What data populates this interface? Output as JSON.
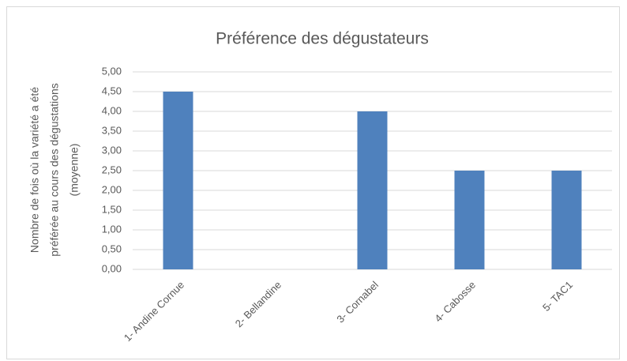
{
  "chart_data": {
    "type": "bar",
    "title": "Préférence des dégustateurs",
    "ylabel": [
      "Nombre de fois où la variété a été",
      "préférée au cours des dégustations",
      "(moyenne)"
    ],
    "categories": [
      "1- Andine Cornue",
      "2- Bellandine",
      "3- Cornabel",
      "4- Cabosse",
      "5- TAC1"
    ],
    "values": [
      4.5,
      0,
      4,
      2.5,
      2.5
    ],
    "color": "#4f81bd",
    "ylim": [
      0,
      5
    ],
    "yticks": [
      {
        "value": 0,
        "label": "0,00"
      },
      {
        "value": 0.5,
        "label": "0,50"
      },
      {
        "value": 1,
        "label": "1,00"
      },
      {
        "value": 1.5,
        "label": "1,50"
      },
      {
        "value": 2,
        "label": "2,00"
      },
      {
        "value": 2.5,
        "label": "2,50"
      },
      {
        "value": 3,
        "label": "3,00"
      },
      {
        "value": 3.5,
        "label": "3,50"
      },
      {
        "value": 4,
        "label": "4,00"
      },
      {
        "value": 4.5,
        "label": "4,50"
      },
      {
        "value": 5,
        "label": "5,00"
      }
    ],
    "grid": true
  }
}
